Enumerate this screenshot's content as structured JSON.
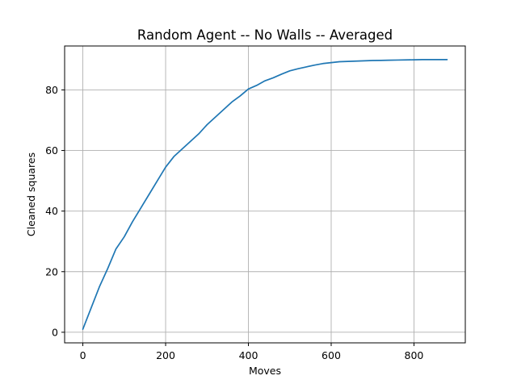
{
  "chart_data": {
    "type": "line",
    "title": "Random Agent -- No Walls -- Averaged",
    "xlabel": "Moves",
    "ylabel": "Cleaned squares",
    "xlim": [
      -44,
      924
    ],
    "ylim": [
      -3.5,
      94.5
    ],
    "xticks": [
      0,
      200,
      400,
      600,
      800
    ],
    "yticks": [
      0,
      20,
      40,
      60,
      80
    ],
    "grid": true,
    "line_color": "#1f77b4",
    "series": [
      {
        "x": [
          0,
          20,
          40,
          60,
          80,
          100,
          120,
          140,
          160,
          180,
          200,
          220,
          240,
          260,
          280,
          300,
          320,
          340,
          360,
          380,
          400,
          420,
          440,
          460,
          480,
          500,
          520,
          540,
          560,
          580,
          600,
          620,
          640,
          660,
          680,
          700,
          720,
          740,
          760,
          780,
          800,
          820,
          840,
          860,
          880
        ],
        "y": [
          1,
          8,
          15,
          21,
          27.5,
          31.5,
          36.5,
          41,
          45.5,
          50,
          54.5,
          58,
          60.5,
          63,
          65.5,
          68.5,
          71,
          73.5,
          76,
          78,
          80.3,
          81.5,
          83,
          84,
          85.2,
          86.3,
          87,
          87.6,
          88.2,
          88.7,
          89,
          89.3,
          89.4,
          89.5,
          89.6,
          89.7,
          89.75,
          89.8,
          89.85,
          89.9,
          89.95,
          90,
          90,
          90,
          90
        ]
      }
    ]
  }
}
